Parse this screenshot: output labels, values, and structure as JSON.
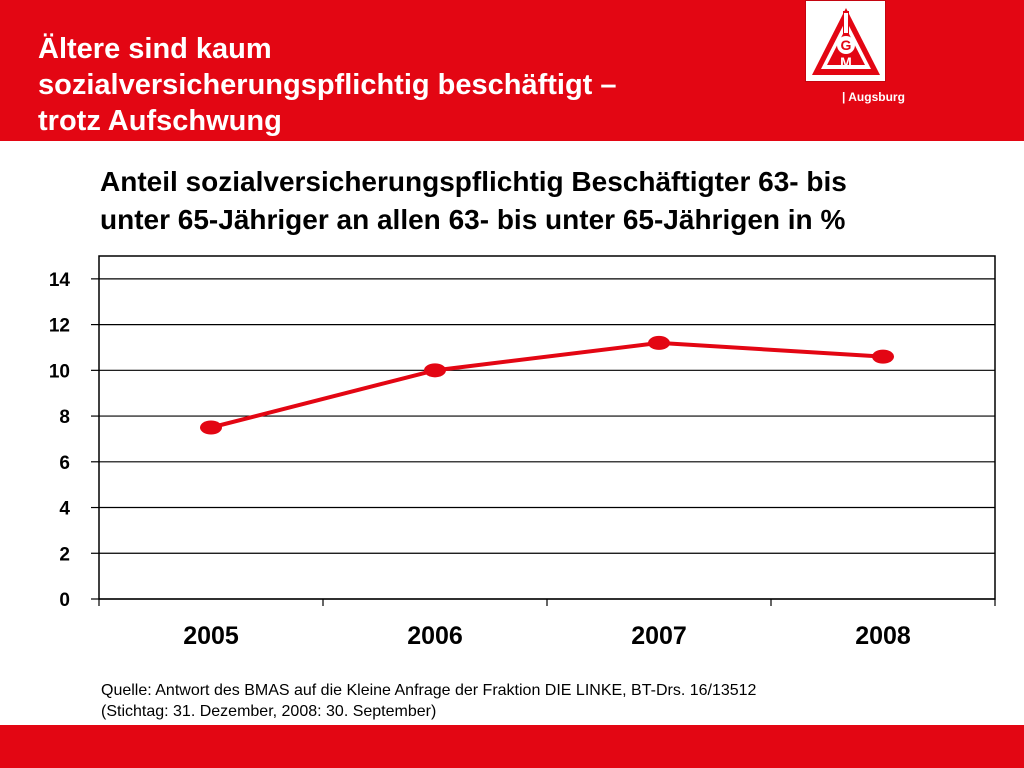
{
  "header": {
    "title_lines": [
      "Ältere sind kaum",
      "sozialversicherungspflichtig beschäftigt –",
      "trotz Aufschwung"
    ],
    "region": "| Augsburg",
    "logo_text": "IGM"
  },
  "colors": {
    "brand_red": "#e30613",
    "line_color": "#e30613",
    "grid_color": "#000000"
  },
  "chart_data": {
    "type": "line",
    "title_lines": [
      "Anteil sozialversicherungspflichtig Beschäftigter 63- bis",
      "unter 65-Jähriger an allen 63- bis unter 65-Jährigen in %"
    ],
    "categories": [
      "2005",
      "2006",
      "2007",
      "2008"
    ],
    "series": [
      {
        "values": [
          7.5,
          10.0,
          11.2,
          10.6
        ]
      }
    ],
    "y_ticks": [
      "0",
      "2",
      "4",
      "6",
      "8",
      "10",
      "12",
      "14"
    ],
    "ylim": [
      0,
      15
    ],
    "grid": true,
    "xlabel": "",
    "ylabel": ""
  },
  "source": {
    "lines": [
      "Quelle: Antwort des BMAS auf die Kleine Anfrage der Fraktion DIE LINKE, BT-Drs. 16/13512",
      "(Stichtag: 31. Dezember, 2008: 30. September)"
    ]
  }
}
